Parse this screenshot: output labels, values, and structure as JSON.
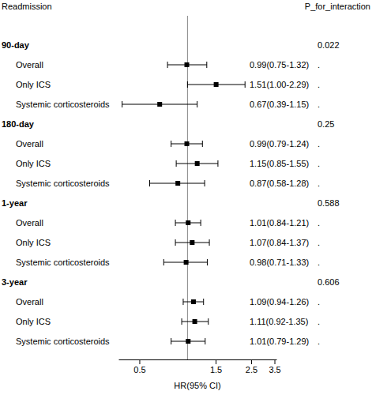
{
  "chart_data": {
    "type": "forest",
    "header_label": "Readmission",
    "p_header": "P_for_interaction",
    "x_label": "HR(95% CI)",
    "log": "x",
    "xlim": [
      0.37,
      3.6
    ],
    "xticks": [
      0.5,
      1.5,
      2.5,
      3.5
    ],
    "reference_line": 1,
    "groups": [
      {
        "name": "90-day",
        "p_interaction": 0.022,
        "rows": [
          {
            "name": "Overall",
            "hr": 0.99,
            "lower": 0.75,
            "upper": 1.32,
            "label": "0.99(0.75-1.32)",
            "p": "."
          },
          {
            "name": "Only ICS",
            "hr": 1.51,
            "lower": 1.0,
            "upper": 2.29,
            "label": "1.51(1.00-2.29)",
            "p": "."
          },
          {
            "name": "Systemic corticosteroids",
            "hr": 0.67,
            "lower": 0.39,
            "upper": 1.15,
            "label": "0.67(0.39-1.15)",
            "p": "."
          }
        ]
      },
      {
        "name": "180-day",
        "p_interaction": 0.25,
        "rows": [
          {
            "name": "Overall",
            "hr": 0.99,
            "lower": 0.79,
            "upper": 1.24,
            "label": "0.99(0.79-1.24)",
            "p": "."
          },
          {
            "name": "Only ICS",
            "hr": 1.15,
            "lower": 0.85,
            "upper": 1.55,
            "label": "1.15(0.85-1.55)",
            "p": "."
          },
          {
            "name": "Systemic corticosteroids",
            "hr": 0.87,
            "lower": 0.58,
            "upper": 1.28,
            "label": "0.87(0.58-1.28)",
            "p": "."
          }
        ]
      },
      {
        "name": "1-year",
        "p_interaction": 0.588,
        "rows": [
          {
            "name": "Overall",
            "hr": 1.01,
            "lower": 0.84,
            "upper": 1.21,
            "label": "1.01(0.84-1.21)",
            "p": "."
          },
          {
            "name": "Only ICS",
            "hr": 1.07,
            "lower": 0.84,
            "upper": 1.37,
            "label": "1.07(0.84-1.37)",
            "p": "."
          },
          {
            "name": "Systemic corticosteroids",
            "hr": 0.98,
            "lower": 0.71,
            "upper": 1.33,
            "label": "0.98(0.71-1.33)",
            "p": "."
          }
        ]
      },
      {
        "name": "3-year",
        "p_interaction": 0.606,
        "rows": [
          {
            "name": "Overall",
            "hr": 1.09,
            "lower": 0.94,
            "upper": 1.26,
            "label": "1.09(0.94-1.26)",
            "p": "."
          },
          {
            "name": "Only ICS",
            "hr": 1.11,
            "lower": 0.92,
            "upper": 1.35,
            "label": "1.11(0.92-1.35)",
            "p": "."
          },
          {
            "name": "Systemic corticosteroids",
            "hr": 1.01,
            "lower": 0.79,
            "upper": 1.29,
            "label": "1.01(0.79-1.29)",
            "p": "."
          }
        ]
      }
    ]
  }
}
